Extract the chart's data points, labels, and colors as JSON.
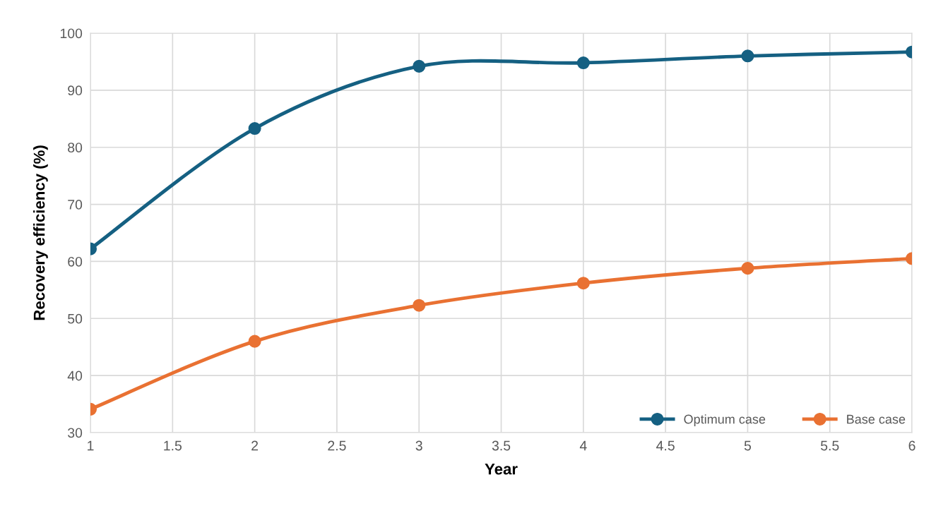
{
  "chart_data": {
    "type": "line",
    "xlabel": "Year",
    "ylabel": "Recovery efficiency (%)",
    "x": [
      1,
      2,
      3,
      4,
      5,
      6
    ],
    "series": [
      {
        "name": "Optimum case",
        "color": "#156082",
        "values": [
          62.2,
          83.3,
          94.2,
          94.8,
          96.0,
          96.7
        ]
      },
      {
        "name": "Base case",
        "color": "#e97132",
        "values": [
          34.1,
          46.0,
          52.3,
          56.2,
          58.8,
          60.5
        ]
      }
    ],
    "xlim": [
      1,
      6
    ],
    "xticks": [
      1,
      1.5,
      2,
      2.5,
      3,
      3.5,
      4,
      4.5,
      5,
      5.5,
      6
    ],
    "ylim": [
      30,
      100
    ],
    "yticks": [
      30,
      40,
      50,
      60,
      70,
      80,
      90,
      100
    ],
    "grid": true,
    "legend": "bottom right",
    "marker": "circle",
    "line_style": "solid"
  }
}
